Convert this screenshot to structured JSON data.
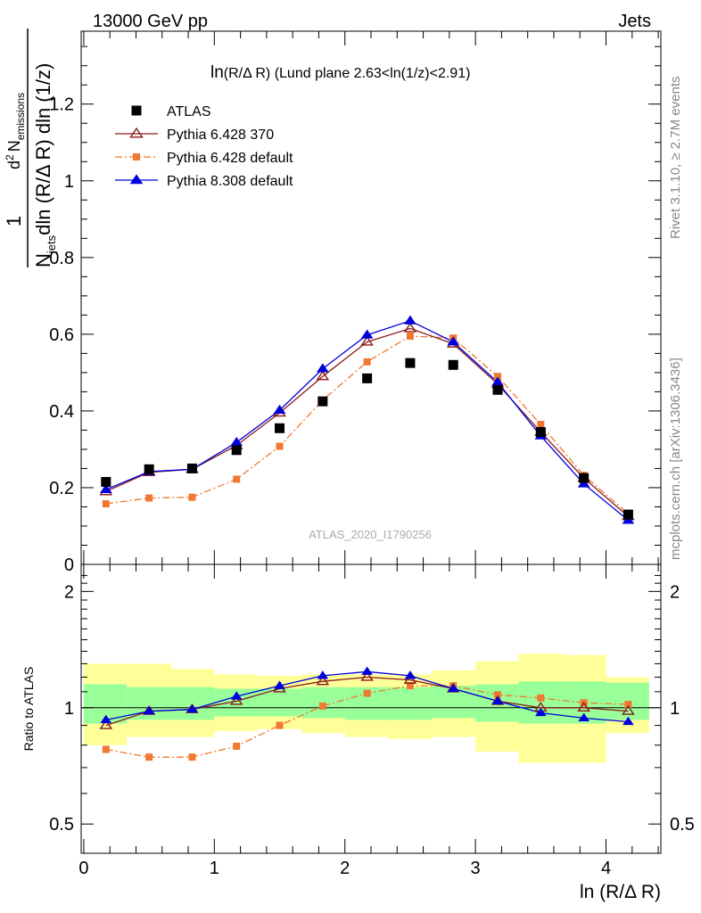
{
  "header": {
    "left": "13000 GeV pp",
    "right": "Jets"
  },
  "side_labels": {
    "rivet": "Rivet 3.1.10, ≥ 2.7M events",
    "mcplots": "mcplots.cern.ch [arXiv:1306.3436]"
  },
  "chart_data": [
    {
      "type": "line",
      "title": "ln(R/Δ R) (Lund plane 2.63<ln(1/z)<2.91)",
      "title_main": "ln",
      "title_rest": "(R/Δ R) (Lund plane 2.63<ln(1/z)<2.91)",
      "xlabel": "ln (R/Δ R)",
      "ylabel": "1/N_jets d²N_emissions/dln(R/Δ R) dln(1/z)",
      "ylabel_parts": {
        "one": "1",
        "N": "N",
        "jets": "jets",
        "den_rest": "dln (R/Δ R) dln (1/z)",
        "d": "d",
        "two": "2",
        "Nnum": "N",
        "emissions": "emissions"
      },
      "watermark": "ATLAS_2020_I1790256",
      "xlim": [
        -0.02,
        4.42
      ],
      "ylim": [
        0,
        1.39
      ],
      "y_ticks": [
        0,
        0.2,
        0.4,
        0.6,
        0.8,
        1,
        1.2
      ],
      "y_tick_labels": [
        "0",
        "0.2",
        "0.4",
        "0.6",
        "0.8",
        "1",
        "1.2"
      ],
      "x": [
        0.17,
        0.5,
        0.83,
        1.17,
        1.5,
        1.83,
        2.17,
        2.5,
        2.83,
        3.17,
        3.5,
        3.83,
        4.17
      ],
      "legend_position": "top-left",
      "series": [
        {
          "name": "ATLAS",
          "style": "data",
          "color": "#000000",
          "values": [
            0.215,
            0.248,
            0.25,
            0.298,
            0.355,
            0.425,
            0.485,
            0.525,
            0.52,
            0.455,
            0.345,
            0.225,
            0.13
          ]
        },
        {
          "name": "Pythia 6.428 370",
          "style": "open-triangle-solid",
          "color": "#8b1a1a",
          "values": [
            0.19,
            0.24,
            0.248,
            0.31,
            0.395,
            0.49,
            0.58,
            0.615,
            0.575,
            0.47,
            0.345,
            0.225,
            0.125
          ]
        },
        {
          "name": "Pythia 6.428 default",
          "style": "square-dashdot",
          "color": "#f07830",
          "values": [
            0.158,
            0.173,
            0.175,
            0.222,
            0.308,
            0.428,
            0.528,
            0.595,
            0.59,
            0.49,
            0.365,
            0.232,
            0.132
          ]
        },
        {
          "name": "Pythia 8.308 default",
          "style": "filled-triangle-solid",
          "color": "#0000dd",
          "values": [
            0.195,
            0.242,
            0.248,
            0.318,
            0.402,
            0.51,
            0.598,
            0.635,
            0.58,
            0.475,
            0.335,
            0.21,
            0.115
          ]
        }
      ]
    },
    {
      "type": "line",
      "ylabel": "Ratio to ATLAS",
      "xlabel": "ln (R/Δ R)",
      "ylim": [
        0.42,
        2.35
      ],
      "y_scale": "log",
      "y_ticks": [
        0.5,
        1,
        2
      ],
      "y_tick_labels": [
        "0.5",
        "1",
        "2"
      ],
      "x_ticks": [
        0,
        1,
        2,
        3,
        4
      ],
      "x_tick_labels": [
        "0",
        "1",
        "2",
        "3",
        "4"
      ],
      "x": [
        0.17,
        0.5,
        0.83,
        1.17,
        1.5,
        1.83,
        2.17,
        2.5,
        2.83,
        3.17,
        3.5,
        3.83,
        4.17
      ],
      "bins": [
        [
          0,
          0.33
        ],
        [
          0.33,
          0.67
        ],
        [
          0.67,
          1.0
        ],
        [
          1.0,
          1.33
        ],
        [
          1.33,
          1.67
        ],
        [
          1.67,
          2.0
        ],
        [
          2.0,
          2.33
        ],
        [
          2.33,
          2.67
        ],
        [
          2.67,
          3.0
        ],
        [
          3.0,
          3.33
        ],
        [
          3.33,
          3.67
        ],
        [
          3.67,
          4.0
        ],
        [
          4.0,
          4.33
        ]
      ],
      "band_inner": [
        [
          0.91,
          1.15
        ],
        [
          0.93,
          1.13
        ],
        [
          0.93,
          1.13
        ],
        [
          0.95,
          1.12
        ],
        [
          0.95,
          1.12
        ],
        [
          0.94,
          1.13
        ],
        [
          0.93,
          1.13
        ],
        [
          0.93,
          1.13
        ],
        [
          0.94,
          1.14
        ],
        [
          0.92,
          1.15
        ],
        [
          0.91,
          1.17
        ],
        [
          0.91,
          1.17
        ],
        [
          0.93,
          1.16
        ]
      ],
      "band_outer": [
        [
          0.8,
          1.3
        ],
        [
          0.84,
          1.3
        ],
        [
          0.84,
          1.26
        ],
        [
          0.87,
          1.22
        ],
        [
          0.88,
          1.21
        ],
        [
          0.86,
          1.22
        ],
        [
          0.84,
          1.22
        ],
        [
          0.83,
          1.22
        ],
        [
          0.84,
          1.25
        ],
        [
          0.77,
          1.32
        ],
        [
          0.72,
          1.38
        ],
        [
          0.72,
          1.37
        ],
        [
          0.86,
          1.2
        ]
      ],
      "series": [
        {
          "name": "Pythia 6.428 370",
          "values": [
            0.9,
            0.98,
            0.99,
            1.04,
            1.12,
            1.17,
            1.2,
            1.18,
            1.12,
            1.04,
            1.0,
            1.0,
            0.98
          ]
        },
        {
          "name": "Pythia 6.428 default",
          "values": [
            0.78,
            0.745,
            0.745,
            0.795,
            0.9,
            1.01,
            1.09,
            1.14,
            1.14,
            1.08,
            1.06,
            1.03,
            1.02
          ]
        },
        {
          "name": "Pythia 8.308 default",
          "values": [
            0.93,
            0.98,
            0.99,
            1.07,
            1.14,
            1.21,
            1.24,
            1.21,
            1.12,
            1.04,
            0.97,
            0.94,
            0.92
          ]
        }
      ]
    }
  ]
}
